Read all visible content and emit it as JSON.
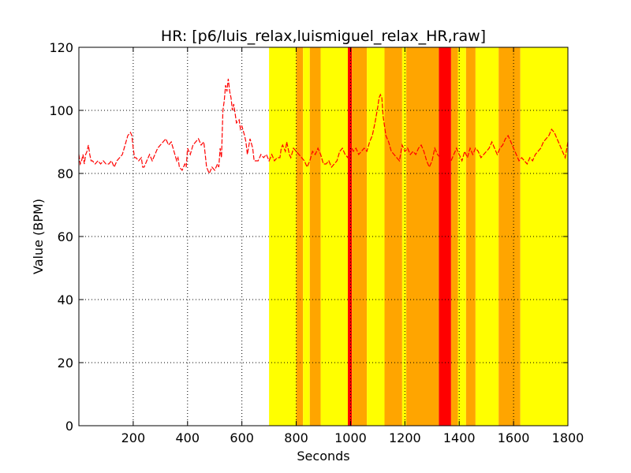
{
  "chart_data": {
    "type": "line",
    "title": "HR: [p6/luis_relax,luismiguel_relax_HR,raw]",
    "xlabel": "Seconds",
    "ylabel": "Value (BPM)",
    "xlim": [
      0,
      1800
    ],
    "ylim": [
      0,
      120
    ],
    "x_ticks": [
      200,
      400,
      600,
      800,
      1000,
      1200,
      1400,
      1600,
      1800
    ],
    "y_ticks": [
      0,
      20,
      40,
      60,
      80,
      100,
      120
    ],
    "grid": true,
    "series": [
      {
        "color": "#ff0000",
        "style": "dashed",
        "points": [
          [
            0,
            86
          ],
          [
            5,
            83
          ],
          [
            10,
            84
          ],
          [
            15,
            86
          ],
          [
            20,
            83
          ],
          [
            25,
            86
          ],
          [
            30,
            87
          ],
          [
            35,
            89
          ],
          [
            40,
            86
          ],
          [
            45,
            84
          ],
          [
            50,
            84
          ],
          [
            60,
            83
          ],
          [
            70,
            84
          ],
          [
            80,
            83
          ],
          [
            90,
            84
          ],
          [
            100,
            83
          ],
          [
            110,
            83
          ],
          [
            120,
            84
          ],
          [
            130,
            82
          ],
          [
            140,
            84
          ],
          [
            150,
            85
          ],
          [
            160,
            86
          ],
          [
            170,
            89
          ],
          [
            180,
            92
          ],
          [
            190,
            93
          ],
          [
            195,
            92
          ],
          [
            200,
            88
          ],
          [
            205,
            85
          ],
          [
            210,
            85
          ],
          [
            220,
            84
          ],
          [
            230,
            85
          ],
          [
            235,
            82
          ],
          [
            240,
            82
          ],
          [
            250,
            84
          ],
          [
            260,
            86
          ],
          [
            270,
            84
          ],
          [
            280,
            86
          ],
          [
            290,
            88
          ],
          [
            300,
            89
          ],
          [
            310,
            90
          ],
          [
            320,
            91
          ],
          [
            330,
            89
          ],
          [
            340,
            90
          ],
          [
            350,
            87
          ],
          [
            360,
            84
          ],
          [
            365,
            85
          ],
          [
            370,
            82
          ],
          [
            380,
            81
          ],
          [
            390,
            83
          ],
          [
            395,
            82
          ],
          [
            400,
            88
          ],
          [
            410,
            86
          ],
          [
            420,
            89
          ],
          [
            430,
            90
          ],
          [
            440,
            91
          ],
          [
            450,
            89
          ],
          [
            460,
            90
          ],
          [
            465,
            86
          ],
          [
            470,
            82
          ],
          [
            480,
            80
          ],
          [
            490,
            82
          ],
          [
            500,
            81
          ],
          [
            510,
            83
          ],
          [
            515,
            82
          ],
          [
            520,
            88
          ],
          [
            525,
            85
          ],
          [
            530,
            100
          ],
          [
            535,
            103
          ],
          [
            540,
            108
          ],
          [
            545,
            106
          ],
          [
            550,
            110
          ],
          [
            555,
            106
          ],
          [
            560,
            104
          ],
          [
            565,
            100
          ],
          [
            570,
            102
          ],
          [
            575,
            99
          ],
          [
            580,
            96
          ],
          [
            590,
            97
          ],
          [
            595,
            94
          ],
          [
            600,
            95
          ],
          [
            610,
            92
          ],
          [
            615,
            90
          ],
          [
            620,
            86
          ],
          [
            630,
            91
          ],
          [
            640,
            88
          ],
          [
            645,
            84
          ],
          [
            650,
            84
          ],
          [
            660,
            84
          ],
          [
            670,
            86
          ],
          [
            680,
            85
          ],
          [
            690,
            86
          ],
          [
            700,
            84
          ],
          [
            710,
            86
          ],
          [
            720,
            84
          ],
          [
            730,
            85
          ],
          [
            740,
            85
          ],
          [
            745,
            88
          ],
          [
            750,
            89
          ],
          [
            760,
            87
          ],
          [
            765,
            90
          ],
          [
            770,
            88
          ],
          [
            775,
            86
          ],
          [
            780,
            85
          ],
          [
            790,
            88
          ],
          [
            800,
            87
          ],
          [
            810,
            86
          ],
          [
            820,
            85
          ],
          [
            830,
            84
          ],
          [
            840,
            82
          ],
          [
            850,
            84
          ],
          [
            860,
            87
          ],
          [
            870,
            86
          ],
          [
            880,
            88
          ],
          [
            890,
            86
          ],
          [
            900,
            83
          ],
          [
            910,
            83
          ],
          [
            920,
            84
          ],
          [
            930,
            82
          ],
          [
            940,
            83
          ],
          [
            950,
            84
          ],
          [
            960,
            87
          ],
          [
            970,
            88
          ],
          [
            980,
            86
          ],
          [
            990,
            85
          ],
          [
            1000,
            89
          ],
          [
            1010,
            87
          ],
          [
            1020,
            88
          ],
          [
            1030,
            86
          ],
          [
            1040,
            87
          ],
          [
            1050,
            88
          ],
          [
            1060,
            87
          ],
          [
            1070,
            90
          ],
          [
            1080,
            92
          ],
          [
            1090,
            96
          ],
          [
            1100,
            101
          ],
          [
            1105,
            104
          ],
          [
            1110,
            105
          ],
          [
            1115,
            104
          ],
          [
            1120,
            98
          ],
          [
            1130,
            92
          ],
          [
            1140,
            90
          ],
          [
            1150,
            87
          ],
          [
            1160,
            86
          ],
          [
            1170,
            85
          ],
          [
            1180,
            84
          ],
          [
            1190,
            89
          ],
          [
            1200,
            87
          ],
          [
            1210,
            88
          ],
          [
            1220,
            86
          ],
          [
            1230,
            87
          ],
          [
            1240,
            86
          ],
          [
            1250,
            88
          ],
          [
            1260,
            89
          ],
          [
            1270,
            87
          ],
          [
            1280,
            84
          ],
          [
            1290,
            82
          ],
          [
            1300,
            84
          ],
          [
            1310,
            88
          ],
          [
            1320,
            86
          ],
          [
            1330,
            85
          ],
          [
            1340,
            85
          ],
          [
            1350,
            88
          ],
          [
            1360,
            86
          ],
          [
            1370,
            84
          ],
          [
            1380,
            86
          ],
          [
            1390,
            88
          ],
          [
            1400,
            86
          ],
          [
            1410,
            84
          ],
          [
            1420,
            87
          ],
          [
            1430,
            85
          ],
          [
            1440,
            88
          ],
          [
            1450,
            86
          ],
          [
            1460,
            88
          ],
          [
            1470,
            87
          ],
          [
            1480,
            85
          ],
          [
            1490,
            86
          ],
          [
            1500,
            87
          ],
          [
            1510,
            88
          ],
          [
            1520,
            90
          ],
          [
            1530,
            88
          ],
          [
            1540,
            86
          ],
          [
            1550,
            88
          ],
          [
            1560,
            89
          ],
          [
            1570,
            91
          ],
          [
            1580,
            92
          ],
          [
            1590,
            90
          ],
          [
            1600,
            88
          ],
          [
            1610,
            86
          ],
          [
            1620,
            84
          ],
          [
            1630,
            85
          ],
          [
            1640,
            84
          ],
          [
            1650,
            83
          ],
          [
            1660,
            85
          ],
          [
            1670,
            84
          ],
          [
            1680,
            86
          ],
          [
            1690,
            87
          ],
          [
            1700,
            88
          ],
          [
            1710,
            90
          ],
          [
            1720,
            91
          ],
          [
            1730,
            92
          ],
          [
            1740,
            94
          ],
          [
            1750,
            93
          ],
          [
            1760,
            91
          ],
          [
            1770,
            89
          ],
          [
            1780,
            87
          ],
          [
            1790,
            85
          ],
          [
            1800,
            90
          ]
        ]
      }
    ],
    "bands": [
      {
        "x0": 700,
        "x1": 800,
        "color": "#ffff00"
      },
      {
        "x0": 800,
        "x1": 825,
        "color": "#ffa500"
      },
      {
        "x0": 825,
        "x1": 850,
        "color": "#ffff00"
      },
      {
        "x0": 850,
        "x1": 890,
        "color": "#ffa500"
      },
      {
        "x0": 890,
        "x1": 990,
        "color": "#ffff00"
      },
      {
        "x0": 990,
        "x1": 1005,
        "color": "#ff0000"
      },
      {
        "x0": 1005,
        "x1": 1060,
        "color": "#ffa500"
      },
      {
        "x0": 1060,
        "x1": 1125,
        "color": "#ffff00"
      },
      {
        "x0": 1125,
        "x1": 1190,
        "color": "#ffa500"
      },
      {
        "x0": 1190,
        "x1": 1205,
        "color": "#ffff00"
      },
      {
        "x0": 1205,
        "x1": 1325,
        "color": "#ffa500"
      },
      {
        "x0": 1325,
        "x1": 1370,
        "color": "#ff0000"
      },
      {
        "x0": 1370,
        "x1": 1395,
        "color": "#ffa500"
      },
      {
        "x0": 1395,
        "x1": 1425,
        "color": "#ffff00"
      },
      {
        "x0": 1425,
        "x1": 1460,
        "color": "#ffa500"
      },
      {
        "x0": 1460,
        "x1": 1545,
        "color": "#ffff00"
      },
      {
        "x0": 1545,
        "x1": 1625,
        "color": "#ffa500"
      },
      {
        "x0": 1625,
        "x1": 1800,
        "color": "#ffff00"
      }
    ]
  }
}
